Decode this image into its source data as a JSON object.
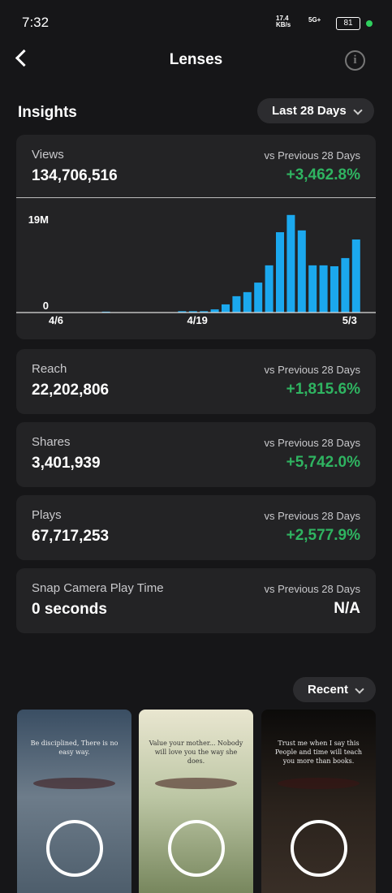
{
  "status_bar": {
    "time": "7:32",
    "speed": "17.4 KB/s",
    "network": "5G+",
    "battery": "81"
  },
  "header": {
    "title": "Lenses"
  },
  "insights": {
    "title": "Insights",
    "range": "Last 28 Days",
    "metrics": [
      {
        "label": "Views",
        "value": "134,706,516",
        "compare": "vs Previous 28 Days",
        "change": "+3,462.8%"
      },
      {
        "label": "Reach",
        "value": "22,202,806",
        "compare": "vs Previous 28 Days",
        "change": "+1,815.6%"
      },
      {
        "label": "Shares",
        "value": "3,401,939",
        "compare": "vs Previous 28 Days",
        "change": "+5,742.0%"
      },
      {
        "label": "Plays",
        "value": "67,717,253",
        "compare": "vs Previous 28 Days",
        "change": "+2,577.9%"
      },
      {
        "label": "Snap Camera Play Time",
        "value": "0 seconds",
        "compare": "vs Previous 28 Days",
        "change": "N/A"
      }
    ]
  },
  "chart_data": {
    "type": "bar",
    "color": "#1ba8ee",
    "categories": [
      "4/6",
      null,
      null,
      null,
      null,
      null,
      null,
      null,
      null,
      null,
      null,
      null,
      null,
      "4/19",
      null,
      null,
      null,
      null,
      null,
      null,
      null,
      null,
      null,
      null,
      null,
      null,
      null,
      "5/3"
    ],
    "values": [
      0,
      0,
      0,
      0,
      200000,
      0,
      0,
      0,
      0,
      0,
      0,
      300000,
      300000,
      300000,
      700000,
      1800000,
      3600000,
      4500000,
      6600000,
      10400000,
      17700000,
      21500000,
      18100000,
      10400000,
      10400000,
      10200000,
      12000000,
      16100000
    ],
    "ylim": [
      0,
      22000000
    ],
    "yticks": [
      0,
      {
        "value": 19000000,
        "label": "19M"
      }
    ],
    "grid": false
  },
  "recent": {
    "sort": "Recent",
    "thumbnails": [
      "Be disciplined, There is no easy way.",
      "Value your mother... Nobody will love you the way she does.",
      "Trust me when I say this People and time will teach you more than books."
    ]
  }
}
